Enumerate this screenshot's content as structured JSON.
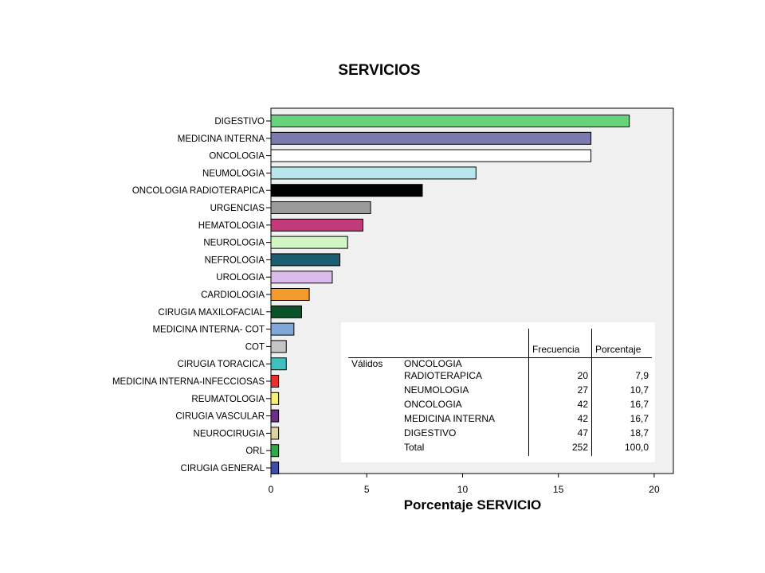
{
  "chart_data": {
    "type": "bar",
    "orientation": "horizontal",
    "title": "SERVICIOS",
    "xlabel": "Porcentaje SERVICIO",
    "ylabel": "",
    "xlim": [
      0,
      21
    ],
    "xticks": [
      0,
      5,
      10,
      15,
      20
    ],
    "grid": false,
    "categories": [
      "DIGESTIVO",
      "MEDICINA INTERNA",
      "ONCOLOGIA",
      "NEUMOLOGIA",
      "ONCOLOGIA RADIOTERAPICA",
      "URGENCIAS",
      "HEMATOLOGIA",
      "NEUROLOGIA",
      "NEFROLOGIA",
      "UROLOGIA",
      "CARDIOLOGIA",
      "CIRUGIA MAXILOFACIAL",
      "MEDICINA INTERNA- COT",
      "COT",
      "CIRUGIA TORACICA",
      "MEDICINA INTERNA-INFECCIOSAS",
      "REUMATOLOGIA",
      "CIRUGIA VASCULAR",
      "NEUROCIRUGIA",
      "ORL",
      "CIRUGIA GENERAL"
    ],
    "values": [
      18.7,
      16.7,
      16.7,
      10.7,
      7.9,
      5.2,
      4.8,
      4.0,
      3.6,
      3.2,
      2.0,
      1.6,
      1.2,
      0.8,
      0.8,
      0.4,
      0.4,
      0.4,
      0.4,
      0.4,
      0.4
    ],
    "colors": [
      "#66d27a",
      "#7b7aaf",
      "#ffffff",
      "#b8e6ed",
      "#000000",
      "#9b9b9b",
      "#c23a7a",
      "#d3f7c4",
      "#1c5d72",
      "#dbbbeb",
      "#f59b2e",
      "#0c5228",
      "#7fa8d8",
      "#c5c5c5",
      "#3fc0bf",
      "#e8302e",
      "#f5ee78",
      "#6b2f83",
      "#dcd3a4",
      "#33a84b",
      "#3f4fa6"
    ],
    "table": {
      "headers": [
        "",
        "",
        "Frecuencia",
        "Porcentaje"
      ],
      "group_label": "Válidos",
      "rows": [
        {
          "label": "ONCOLOGIA RADIOTERAPICA",
          "frecuencia": "20",
          "porcentaje": "7,9"
        },
        {
          "label": "NEUMOLOGIA",
          "frecuencia": "27",
          "porcentaje": "10,7"
        },
        {
          "label": "ONCOLOGIA",
          "frecuencia": "42",
          "porcentaje": "16,7"
        },
        {
          "label": "MEDICINA INTERNA",
          "frecuencia": "42",
          "porcentaje": "16,7"
        },
        {
          "label": "DIGESTIVO",
          "frecuencia": "47",
          "porcentaje": "18,7"
        },
        {
          "label": "Total",
          "frecuencia": "252",
          "porcentaje": "100,0"
        }
      ]
    }
  }
}
